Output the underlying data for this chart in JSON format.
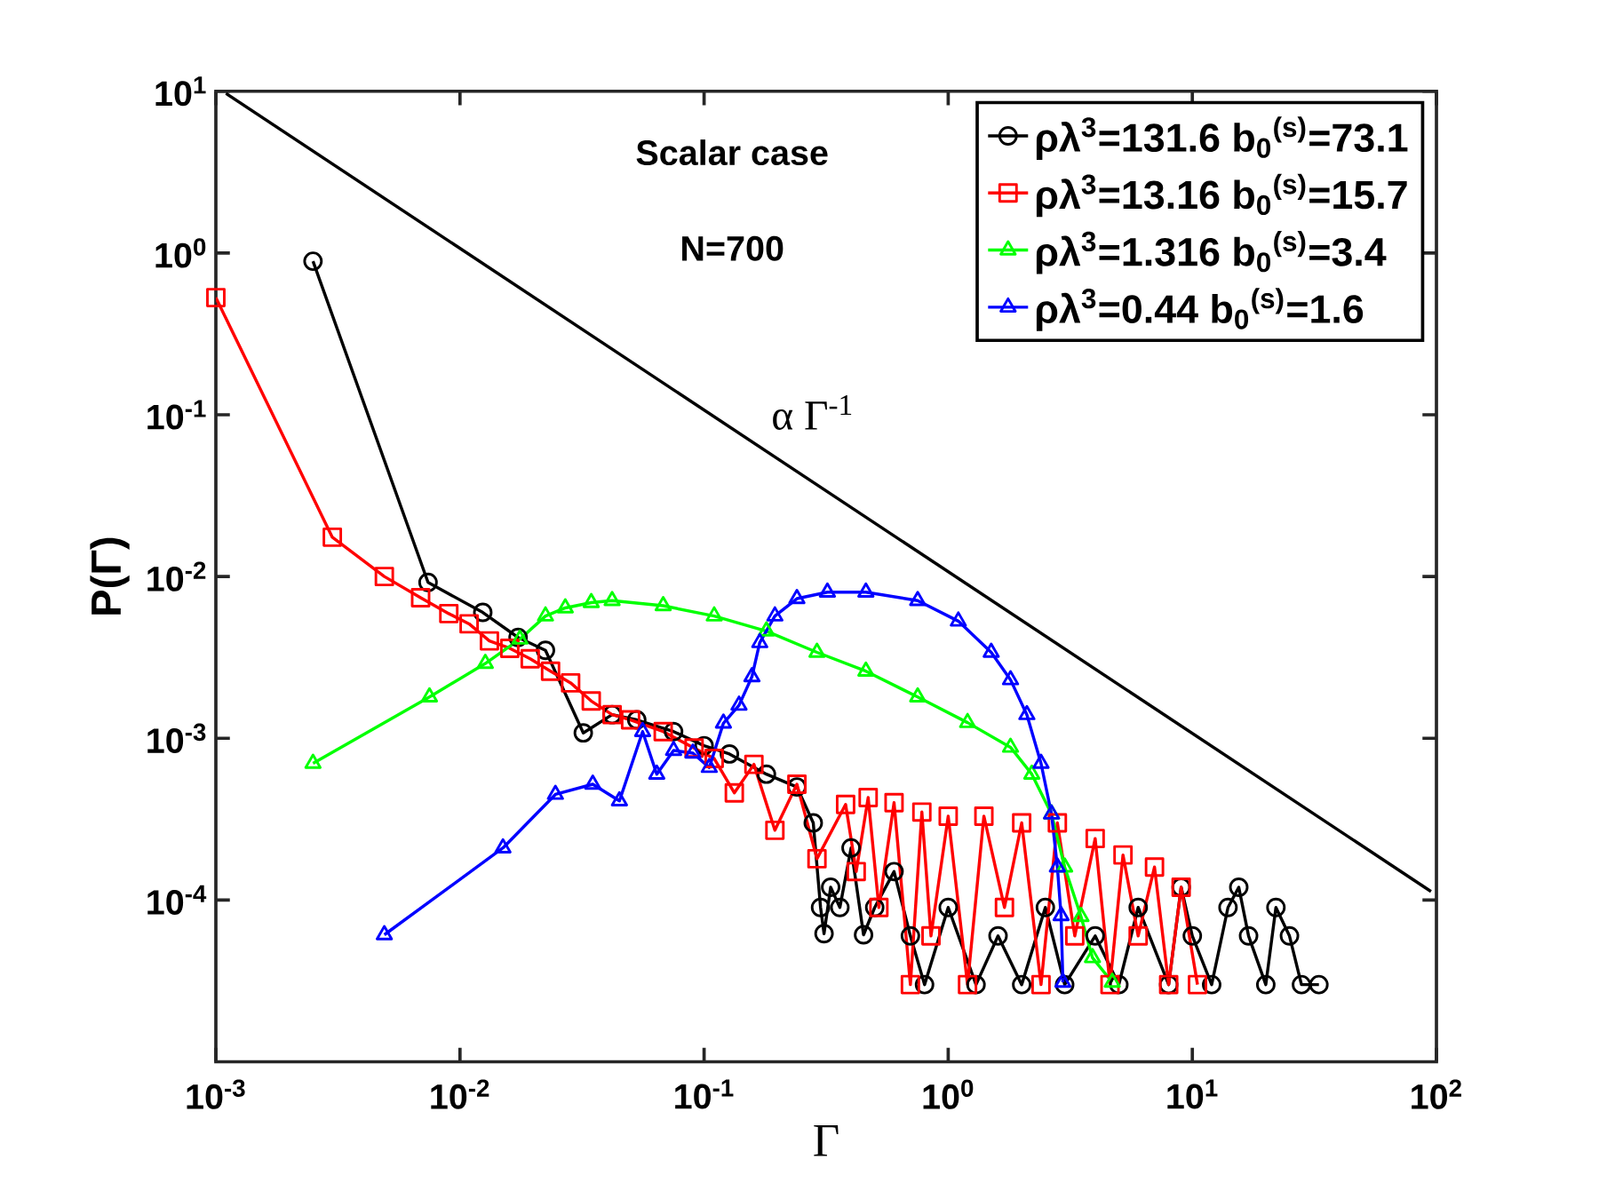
{
  "chart_data": {
    "type": "line",
    "xlabel": "Γ",
    "ylabel": "P(Γ)",
    "log": "xy",
    "grid": false,
    "legend": "top right",
    "xlim": [
      0.001,
      100
    ],
    "ylim": [
      1e-05,
      10
    ],
    "xticks": [
      {
        "value": 0.001,
        "label": "10$^{-3}$"
      },
      {
        "value": 0.01,
        "label": "10$^{-2}$"
      },
      {
        "value": 0.1,
        "label": "10$^{-1}$"
      },
      {
        "value": 1,
        "label": "10$^{0}$"
      },
      {
        "value": 10,
        "label": "10$^{1}$"
      },
      {
        "value": 100,
        "label": "10$^{2}$"
      }
    ],
    "yticks": [
      {
        "value": 0.0001,
        "label": "10$^{-4}$"
      },
      {
        "value": 0.001,
        "label": "10$^{-3}$"
      },
      {
        "value": 0.01,
        "label": "10$^{-2}$"
      },
      {
        "value": 0.1,
        "label": "10$^{-1}$"
      },
      {
        "value": 1,
        "label": "10$^{0}$"
      },
      {
        "value": 10,
        "label": "10$^{1}$"
      }
    ],
    "annotations": [
      "Scalar case",
      "N=700",
      "α Γ$^{-1}$"
    ],
    "series": [
      {
        "name": "ρλ$^{3}$=131.6 b$_{0}$$^{(s)}$=73.1",
        "color": "#000000",
        "marker": "circle",
        "x": [
          0.0025,
          0.0074,
          0.0124,
          0.0173,
          0.0224,
          0.032,
          0.042,
          0.053,
          0.075,
          0.1,
          0.127,
          0.18,
          0.24,
          0.28,
          0.3,
          0.31,
          0.33,
          0.36,
          0.4,
          0.45,
          0.5,
          0.6,
          0.7,
          0.8,
          1.0,
          1.3,
          1.6,
          2.0,
          2.5,
          3,
          4,
          5,
          6,
          8,
          9,
          10,
          12,
          14,
          15.5,
          17,
          20,
          22,
          25,
          28,
          33
        ],
        "values": [
          0.89,
          0.0092,
          0.006,
          0.0042,
          0.0035,
          0.00108,
          0.0014,
          0.0013,
          0.0011,
          0.0009,
          0.0008,
          0.0006,
          0.0005,
          0.0003,
          9e-05,
          6.2e-05,
          0.00012,
          9e-05,
          0.00021,
          6.1e-05,
          9e-05,
          0.00015,
          6e-05,
          3e-05,
          9e-05,
          3e-05,
          6e-05,
          3e-05,
          9e-05,
          3e-05,
          6e-05,
          3e-05,
          9e-05,
          3e-05,
          0.00012,
          6e-05,
          3e-05,
          9e-05,
          0.00012,
          6e-05,
          3e-05,
          9e-05,
          6e-05,
          3e-05,
          3e-05
        ]
      },
      {
        "name": "ρλ$^{3}$=13.16 b$_{0}$$^{(s)}$=15.7",
        "color": "#ff0000",
        "marker": "square",
        "x": [
          0.001,
          0.003,
          0.0049,
          0.0069,
          0.009,
          0.0109,
          0.0132,
          0.016,
          0.0194,
          0.0235,
          0.0284,
          0.0345,
          0.042,
          0.05,
          0.068,
          0.091,
          0.11,
          0.133,
          0.16,
          0.195,
          0.24,
          0.29,
          0.38,
          0.42,
          0.47,
          0.52,
          0.6,
          0.7,
          0.78,
          0.85,
          1.0,
          1.2,
          1.4,
          1.7,
          2.0,
          2.4,
          2.8,
          3.3,
          4.0,
          4.6,
          5.2,
          6.0,
          7.0,
          8.0,
          9.0,
          10.5
        ],
        "values": [
          0.53,
          0.0175,
          0.01,
          0.0074,
          0.0059,
          0.0051,
          0.004,
          0.0036,
          0.0031,
          0.0026,
          0.0022,
          0.0017,
          0.0014,
          0.0013,
          0.0011,
          0.00087,
          0.00075,
          0.00046,
          0.00069,
          0.00027,
          0.00052,
          0.00018,
          0.00039,
          0.00015,
          0.00043,
          9e-05,
          0.0004,
          3e-05,
          0.00035,
          6e-05,
          0.00033,
          3e-05,
          0.00033,
          9e-05,
          0.0003,
          3e-05,
          0.0003,
          6e-05,
          0.00024,
          3e-05,
          0.00019,
          6e-05,
          0.00016,
          3e-05,
          0.00012,
          3e-05
        ]
      },
      {
        "name": "ρλ$^{3}$=1.316 b$_{0}$$^{(s)}$=3.4",
        "color": "#00ff00",
        "marker": "triangle",
        "x": [
          0.0025,
          0.0075,
          0.0127,
          0.0176,
          0.0224,
          0.027,
          0.0345,
          0.042,
          0.068,
          0.11,
          0.18,
          0.29,
          0.46,
          0.75,
          1.2,
          1.8,
          2.2,
          2.65,
          3.0,
          3.5,
          3.9,
          4.7
        ],
        "values": [
          0.0007,
          0.0018,
          0.0029,
          0.0041,
          0.0057,
          0.0064,
          0.0069,
          0.0071,
          0.0066,
          0.0057,
          0.0046,
          0.0034,
          0.0026,
          0.0018,
          0.00125,
          0.00088,
          0.0006,
          0.00034,
          0.00016,
          7.9e-05,
          4.4e-05,
          3.1e-05
        ]
      },
      {
        "name": "ρλ$^{3}$=0.44  b$_{0}$$^{(s)}$=1.6",
        "color": "#0000ff",
        "marker": "triangle",
        "x": [
          0.0049,
          0.015,
          0.0246,
          0.035,
          0.045,
          0.056,
          0.064,
          0.075,
          0.09,
          0.105,
          0.12,
          0.139,
          0.157,
          0.169,
          0.195,
          0.24,
          0.32,
          0.46,
          0.75,
          1.1,
          1.5,
          1.8,
          2.1,
          2.4,
          2.65,
          2.8,
          2.9,
          2.95
        ],
        "values": [
          6.1e-05,
          0.00021,
          0.00045,
          0.00052,
          0.00041,
          0.0011,
          0.0006,
          0.00084,
          0.00081,
          0.00066,
          0.00124,
          0.0016,
          0.0024,
          0.0039,
          0.0057,
          0.0073,
          0.008,
          0.008,
          0.0071,
          0.0053,
          0.0034,
          0.0023,
          0.0014,
          0.0007,
          0.00034,
          0.00016,
          8e-05,
          3.1e-05
        ]
      },
      {
        "type": "line",
        "color": "#000000",
        "marker": "none",
        "x": [
          0.0011,
          95
        ],
        "values": [
          9.7,
          0.000113
        ]
      }
    ]
  }
}
